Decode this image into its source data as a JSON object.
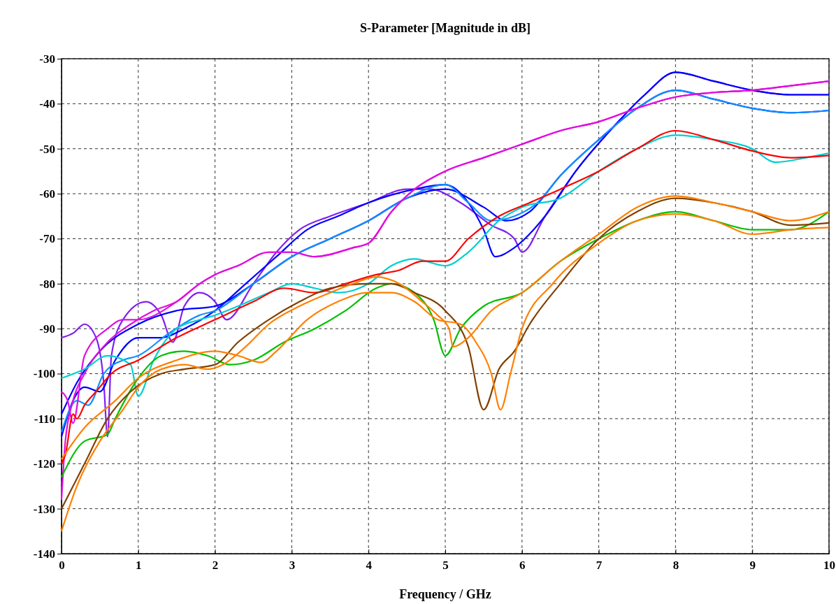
{
  "chart_data": {
    "type": "line",
    "title": "S-Parameter [Magnitude in dB]",
    "xlabel": "Frequency / GHz",
    "xlim": [
      0,
      10
    ],
    "ylim": [
      -140,
      -30
    ],
    "xticks": [
      0,
      1,
      2,
      3,
      4,
      5,
      6,
      7,
      8,
      9,
      10
    ],
    "yticks": [
      -140,
      -130,
      -120,
      -110,
      -100,
      -90,
      -80,
      -70,
      -60,
      -50,
      -40,
      -30
    ],
    "grid": true,
    "line_style": "solid",
    "marker": "none",
    "series": [
      {
        "color": "#8020f0",
        "x": [
          0,
          0.15,
          0.3,
          0.45,
          0.55,
          0.6,
          0.65,
          0.8,
          1.1,
          1.3,
          1.45,
          1.6,
          1.8,
          2,
          2.15,
          2.5,
          2.8,
          3.1,
          3.5,
          4,
          4.5,
          4.8,
          5.2,
          5.6,
          5.9,
          6,
          6.3,
          6.7,
          7.2,
          7.6,
          8,
          8.5,
          9,
          9.5,
          10
        ],
        "values": [
          -92,
          -91,
          -89,
          -92,
          -102,
          -114,
          -96,
          -88,
          -84,
          -87,
          -93,
          -85,
          -82,
          -84,
          -88,
          -80,
          -73,
          -68,
          -65,
          -62,
          -59,
          -59,
          -62,
          -67,
          -70,
          -73,
          -65,
          -55,
          -45,
          -38,
          -33,
          -35,
          -37,
          -38,
          -38
        ]
      },
      {
        "color": "#0000ff",
        "x": [
          0,
          0.15,
          0.3,
          0.5,
          0.7,
          1,
          1.3,
          1.6,
          2,
          2.4,
          2.8,
          3.2,
          3.6,
          4,
          4.6,
          5,
          5.3,
          5.5,
          5.65,
          5.9,
          6.3,
          6.7,
          7.2,
          7.6,
          8,
          8.5,
          9,
          9.5,
          10
        ],
        "values": [
          -114,
          -106,
          -103,
          -104,
          -97,
          -92,
          -92,
          -90,
          -86,
          -80,
          -74,
          -68,
          -65,
          -62,
          -59,
          -58,
          -62,
          -68,
          -74,
          -72,
          -65,
          -55,
          -45,
          -38,
          -33,
          -35,
          -37,
          -38,
          -38
        ]
      },
      {
        "color": "#0000ff",
        "x": [
          0,
          0.2,
          0.5,
          1,
          1.5,
          2,
          2.5,
          3,
          3.5,
          4,
          4.5,
          5,
          5.5,
          5.8,
          6.1,
          6.5,
          7,
          7.5,
          8,
          8.5,
          9,
          9.5,
          10
        ],
        "values": [
          -109,
          -102,
          -95,
          -89,
          -86,
          -85,
          -80,
          -74,
          -70,
          -66,
          -61,
          -59,
          -63,
          -66,
          -64,
          -56,
          -48,
          -41,
          -37,
          -39,
          -41,
          -42,
          -41.5
        ]
      },
      {
        "color": "#1090ff",
        "x": [
          0,
          0.2,
          0.35,
          0.55,
          0.8,
          1,
          1.4,
          1.8,
          2,
          2.5,
          3,
          3.5,
          4,
          4.5,
          5,
          5.3,
          5.6,
          5.9,
          6.2,
          6.5,
          7,
          7.5,
          8,
          8.5,
          9,
          9.5,
          10
        ],
        "values": [
          -113,
          -106,
          -107,
          -100,
          -97,
          -96,
          -91,
          -87,
          -86,
          -80,
          -74,
          -70,
          -66,
          -61,
          -58,
          -62,
          -66,
          -65,
          -62,
          -56,
          -48,
          -41,
          -37,
          -39,
          -41,
          -42,
          -41.5
        ]
      },
      {
        "color": "#e010e0",
        "x": [
          0,
          0.08,
          0.15,
          0.3,
          0.6,
          0.8,
          1,
          1.5,
          1.8,
          2,
          2.3,
          2.7,
          3,
          3.3,
          3.8,
          4,
          4.3,
          4.6,
          5,
          5.5,
          6,
          6.5,
          7,
          7.5,
          8,
          8.5,
          9,
          9.5,
          10
        ],
        "values": [
          -104,
          -106,
          -111,
          -96,
          -90,
          -88,
          -88,
          -84,
          -80,
          -78,
          -76,
          -73,
          -73,
          -74,
          -72,
          -71,
          -64,
          -59,
          -55,
          -52,
          -49,
          -46,
          -44,
          -41,
          -38.5,
          -37.5,
          -37,
          -36,
          -35
        ]
      },
      {
        "color": "#e010e0",
        "x": [
          0,
          0.05,
          0.15,
          0.3,
          0.6,
          0.9,
          1.2,
          1.5,
          1.8,
          2,
          2.3,
          2.7,
          3,
          3.3,
          3.8,
          4,
          4.3,
          4.6,
          5,
          5.5,
          6,
          6.5,
          7,
          7.5,
          8,
          8.5,
          9,
          9.5,
          10
        ],
        "values": [
          -128,
          -115,
          -106,
          -100,
          -93,
          -89,
          -86,
          -84,
          -80,
          -78,
          -76,
          -73,
          -73,
          -74,
          -72,
          -71,
          -64,
          -59,
          -55,
          -52,
          -49,
          -46,
          -44,
          -41,
          -38.5,
          -37.5,
          -37,
          -36,
          -35
        ]
      },
      {
        "color": "#00d0d0",
        "x": [
          0,
          0.3,
          0.6,
          0.9,
          1,
          1.2,
          1.5,
          1.8,
          2,
          2.3,
          2.7,
          3,
          3.3,
          3.6,
          4,
          4.3,
          4.6,
          5,
          5.3,
          5.7,
          6,
          6.5,
          7,
          7.5,
          8,
          8.5,
          9,
          9.3,
          9.7,
          10
        ],
        "values": [
          -101,
          -99,
          -96,
          -98,
          -105,
          -97,
          -90,
          -88,
          -87,
          -85,
          -82,
          -80,
          -81,
          -82,
          -80,
          -76,
          -74.5,
          -76,
          -73,
          -66,
          -63,
          -61,
          -55,
          -50,
          -47,
          -48,
          -50,
          -53,
          -52,
          -51
        ]
      },
      {
        "color": "#ff0000",
        "x": [
          0,
          0.05,
          0.15,
          0.2,
          0.3,
          0.45,
          0.65,
          1,
          1.5,
          2,
          2.5,
          2.9,
          3.3,
          3.7,
          4.1,
          4.4,
          4.7,
          5,
          5.3,
          5.7,
          6.1,
          6.5,
          7,
          7.5,
          8,
          8.5,
          9,
          9.5,
          10
        ],
        "values": [
          -120,
          -118,
          -109,
          -110,
          -107,
          -104,
          -100,
          -97,
          -92,
          -88,
          -84,
          -81,
          -82,
          -80,
          -78,
          -77,
          -75,
          -75,
          -70,
          -65,
          -62,
          -59,
          -55,
          -50,
          -46,
          -48,
          -50.5,
          -52,
          -51.5
        ]
      },
      {
        "color": "#00c000",
        "x": [
          0,
          0.3,
          0.6,
          0.7,
          1,
          1.3,
          1.6,
          1.9,
          2.2,
          2.5,
          2.9,
          3.3,
          3.7,
          4.1,
          4.3,
          4.6,
          4.85,
          5,
          5.2,
          5.5,
          6,
          6.5,
          7,
          7.5,
          8,
          8.5,
          9,
          9.5,
          10
        ],
        "values": [
          -123,
          -115,
          -113.5,
          -110,
          -101,
          -96,
          -95,
          -96,
          -98,
          -97,
          -93,
          -90,
          -86,
          -81,
          -80,
          -82,
          -88,
          -96,
          -90,
          -85,
          -82,
          -75,
          -70,
          -66,
          -64,
          -66,
          -68,
          -68,
          -64
        ]
      },
      {
        "color": "#804000",
        "x": [
          0,
          0.3,
          0.6,
          0.9,
          1.3,
          1.6,
          2,
          2.3,
          2.7,
          3.1,
          3.5,
          4,
          4.3,
          4.6,
          5,
          5.3,
          5.5,
          5.7,
          5.9,
          6.1,
          6.5,
          7,
          7.5,
          8,
          8.5,
          9,
          9.5,
          10
        ],
        "values": [
          -130,
          -120,
          -110,
          -104,
          -100,
          -99,
          -98,
          -93,
          -88,
          -84,
          -81,
          -80,
          -80,
          -82,
          -86,
          -94,
          -108,
          -99,
          -95,
          -89,
          -80,
          -70,
          -64,
          -61,
          -62,
          -64,
          -67,
          -66.5
        ]
      },
      {
        "color": "#ff8000",
        "x": [
          0,
          0.2,
          0.5,
          0.8,
          1,
          1.3,
          1.6,
          1.9,
          2.1,
          2.4,
          2.7,
          3.1,
          3.5,
          3.8,
          4.1,
          4.4,
          4.7,
          4.9,
          5.05,
          5.1,
          5.3,
          5.6,
          6,
          6.5,
          7,
          7.5,
          8,
          8.5,
          9,
          9.5,
          10
        ],
        "values": [
          -135,
          -125,
          -115,
          -108,
          -103,
          -99,
          -98,
          -99,
          -98,
          -94,
          -89,
          -85,
          -82,
          -80,
          -78.5,
          -80,
          -84,
          -87,
          -90,
          -94,
          -92,
          -86,
          -82,
          -75,
          -69,
          -63,
          -60.5,
          -62,
          -64,
          -66,
          -64
        ]
      },
      {
        "color": "#ff8000",
        "x": [
          0,
          0.3,
          0.7,
          1,
          1.5,
          2,
          2.3,
          2.6,
          2.8,
          3.2,
          3.6,
          4,
          4.3,
          4.6,
          4.9,
          5.2,
          5.4,
          5.6,
          5.72,
          5.85,
          6,
          6.4,
          7,
          7.5,
          8,
          8.5,
          9,
          9.5,
          10
        ],
        "values": [
          -119,
          -112,
          -106,
          -101,
          -97,
          -95,
          -96,
          -97.5,
          -95,
          -88,
          -84,
          -82,
          -82,
          -84,
          -88,
          -89,
          -93,
          -100,
          -108,
          -100,
          -90,
          -80,
          -71,
          -66,
          -64.5,
          -66,
          -69,
          -68,
          -67.5
        ]
      }
    ]
  }
}
